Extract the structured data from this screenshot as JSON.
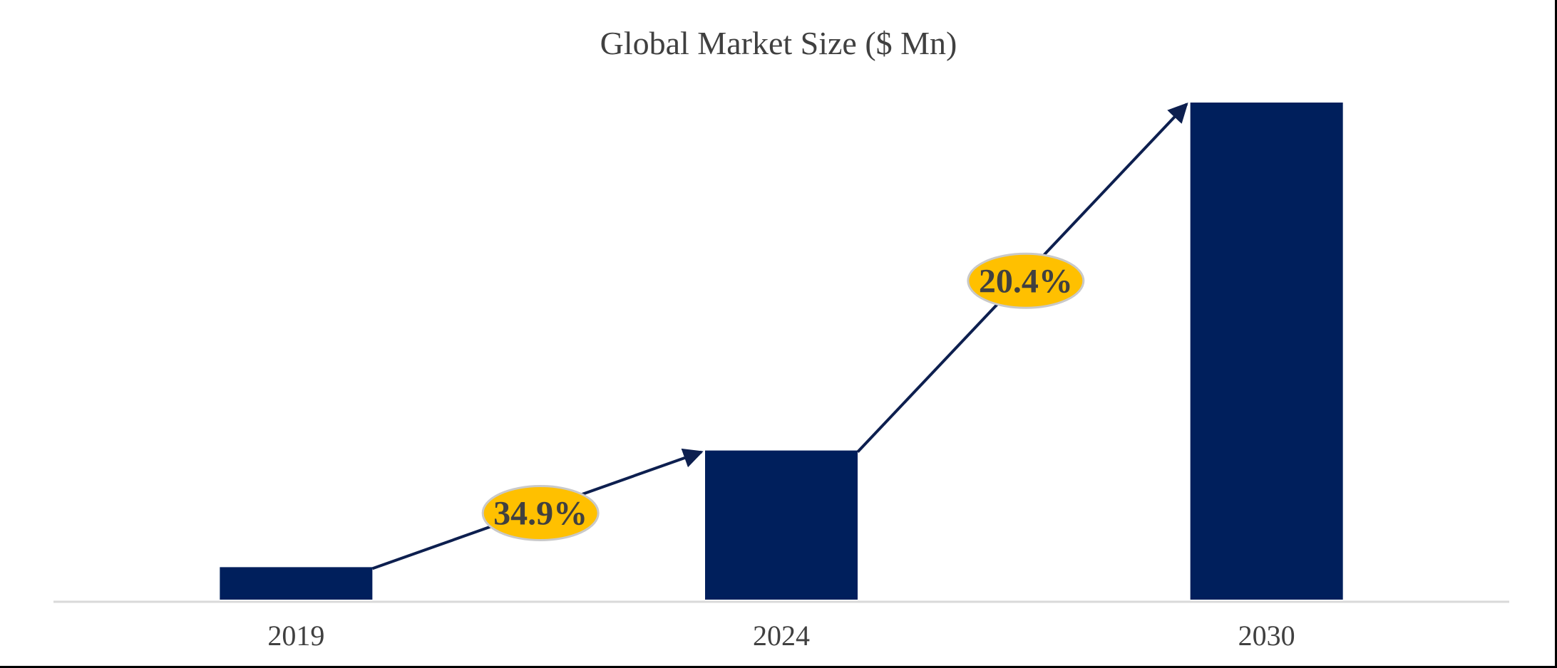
{
  "chart_data": {
    "type": "bar",
    "title": "Global Market Size ($ Mn)",
    "categories": [
      "2019",
      "2024",
      "2030"
    ],
    "values": [
      9.8,
      45.0,
      150.0
    ],
    "xlabel": "",
    "ylabel": "",
    "ylim": [
      0,
      150
    ],
    "grid": false,
    "legend": "none",
    "annotations": [
      {
        "label": "34.9%",
        "from": "2019",
        "to": "2024"
      },
      {
        "label": "20.4%",
        "from": "2024",
        "to": "2030"
      }
    ]
  },
  "colors": {
    "bar": "#001f5c",
    "arrow": "#0d1f4f",
    "badge_fill": "#ffc000",
    "badge_stroke": "#c9c9c9",
    "axis": "#d9d9d9",
    "text": "#404040"
  }
}
